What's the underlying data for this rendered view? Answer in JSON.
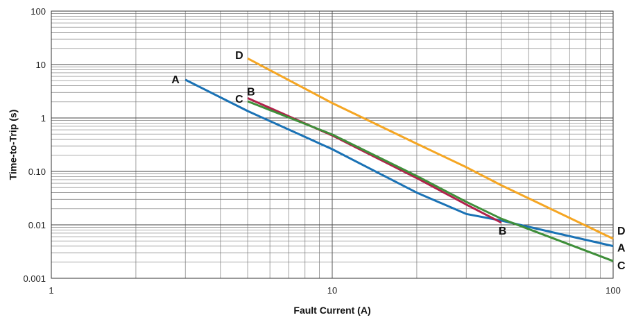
{
  "chart_data": {
    "type": "line",
    "xlabel": "Fault Current (A)",
    "ylabel": "Time-to-Trip (s)",
    "x_scale": "log",
    "y_scale": "log",
    "xlim": [
      1,
      100
    ],
    "ylim": [
      0.001,
      100
    ],
    "x_ticks": [
      {
        "value": 1,
        "label": "1"
      },
      {
        "value": 10,
        "label": "10"
      },
      {
        "value": 100,
        "label": "100"
      }
    ],
    "y_ticks": [
      {
        "value": 100,
        "label": "100"
      },
      {
        "value": 10,
        "label": "10"
      },
      {
        "value": 1,
        "label": "1"
      },
      {
        "value": 0.1,
        "label": "0.10"
      },
      {
        "value": 0.01,
        "label": "0.01"
      },
      {
        "value": 0.001,
        "label": "0.001"
      }
    ],
    "grid": true,
    "series": [
      {
        "name": "A",
        "color": "#1a72b5",
        "points": [
          [
            3,
            5.2
          ],
          [
            5,
            1.35
          ],
          [
            10,
            0.26
          ],
          [
            20,
            0.04
          ],
          [
            30,
            0.016
          ],
          [
            40,
            0.012
          ],
          [
            100,
            0.004
          ]
        ]
      },
      {
        "name": "B",
        "color": "#b0224b",
        "points": [
          [
            5,
            2.35
          ],
          [
            10,
            0.47
          ],
          [
            20,
            0.075
          ],
          [
            30,
            0.024
          ],
          [
            40,
            0.011
          ]
        ]
      },
      {
        "name": "C",
        "color": "#3f8f3a",
        "points": [
          [
            5,
            2.05
          ],
          [
            10,
            0.49
          ],
          [
            20,
            0.082
          ],
          [
            30,
            0.027
          ],
          [
            40,
            0.013
          ],
          [
            100,
            0.0021
          ]
        ]
      },
      {
        "name": "D",
        "color": "#f5a623",
        "points": [
          [
            5,
            13
          ],
          [
            10,
            1.9
          ],
          [
            20,
            0.33
          ],
          [
            30,
            0.12
          ],
          [
            40,
            0.055
          ],
          [
            100,
            0.0055
          ]
        ]
      }
    ]
  }
}
